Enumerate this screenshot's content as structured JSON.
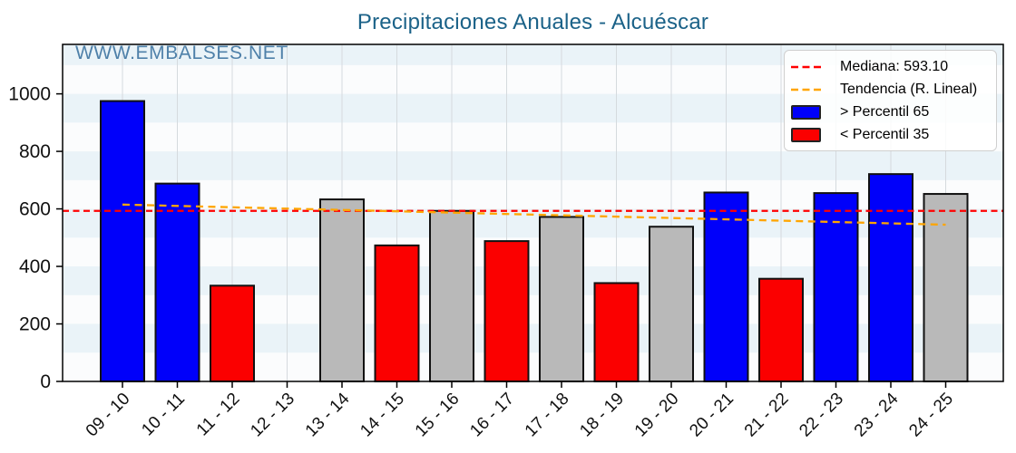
{
  "chart_data": {
    "type": "bar",
    "title": "Precipitaciones Anuales - Alcuéscar",
    "watermark": "WWW.EMBALSES.NET",
    "categories": [
      "09 - 10",
      "10 - 11",
      "11 - 12",
      "12 - 13",
      "13 - 14",
      "14 - 15",
      "15 - 16",
      "16 - 17",
      "17 - 18",
      "18 - 19",
      "19 - 20",
      "20 - 21",
      "21 - 22",
      "22 - 23",
      "23 - 24",
      "24 - 25"
    ],
    "values": [
      975,
      688,
      333,
      null,
      633,
      473,
      593,
      488,
      572,
      342,
      538,
      657,
      357,
      655,
      721,
      652
    ],
    "band": [
      "above",
      "above",
      "below",
      null,
      "mid",
      "below",
      "mid",
      "below",
      "mid",
      "below",
      "mid",
      "above",
      "below",
      "above",
      "above",
      "mid"
    ],
    "median": 593.1,
    "trend": {
      "start_value": 615,
      "end_value": 545
    },
    "xlabel": "",
    "ylabel": "",
    "ylim": [
      0,
      1172
    ],
    "yticks": [
      0,
      200,
      400,
      600,
      800,
      1000
    ],
    "x_tick_rotation": 45,
    "grid": "vertical",
    "legend_position": "upper right",
    "colors": {
      "above": "#0000fa",
      "below": "#fb0000",
      "mid": "#b9b9b9",
      "bar_edge": "#111111",
      "median_line": "#ff0000",
      "trend_line": "#ffa500",
      "stripe": "#eaf3f8",
      "plot_bg": "#fbfcfd",
      "grid": "#d5dade",
      "title": "#1b6288",
      "watermark": "#4e80a9"
    }
  },
  "legend": {
    "items": [
      {
        "key": "median",
        "label": "Mediana: 593.10",
        "type": "dashed-line",
        "color": "#ff0000"
      },
      {
        "key": "trend",
        "label": "Tendencia (R. Lineal)",
        "type": "dashed-line",
        "color": "#ffa500"
      },
      {
        "key": "p65",
        "label": "> Percentil 65",
        "type": "patch",
        "color": "#0000fa"
      },
      {
        "key": "p35",
        "label": "< Percentil 35",
        "type": "patch",
        "color": "#fb0000"
      }
    ]
  }
}
